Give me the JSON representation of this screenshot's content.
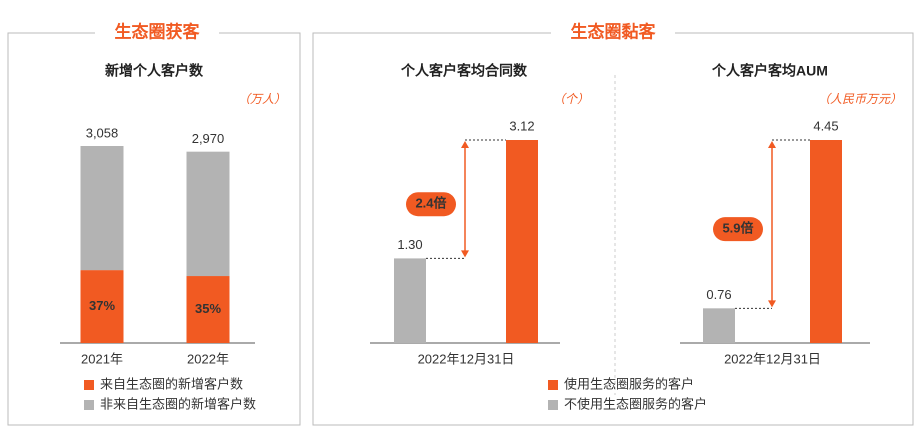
{
  "sections": [
    {
      "title": "生态圈获客"
    },
    {
      "title": "生态圈黏客"
    }
  ],
  "chart_data": [
    {
      "type": "stacked_bar",
      "title": "新增个人客户数",
      "unit": "（万人）",
      "categories": [
        "2021年",
        "2022年"
      ],
      "totals": {
        "values": [
          3058,
          2970
        ],
        "value_labels": [
          "3,058",
          "2,970"
        ]
      },
      "series": [
        {
          "name": "来自生态圈的新增客户数",
          "color": "#f15a22",
          "values": [
            37,
            35
          ],
          "value_labels": [
            "37%",
            "35%"
          ]
        },
        {
          "name": "非来自生态圈的新增客户数",
          "color": "#b3b3b3",
          "values": [
            63,
            65
          ]
        }
      ]
    },
    {
      "type": "bar",
      "title": "个人客户客均合同数",
      "unit": "（个）",
      "categories": [
        "2022年12月31日"
      ],
      "annotation": "2.4倍",
      "series": [
        {
          "name": "使用生态圈服务的客户",
          "color": "#f15a22",
          "values": [
            3.12
          ],
          "value_labels": [
            "3.12"
          ]
        },
        {
          "name": "不使用生态圈服务的客户",
          "color": "#b3b3b3",
          "values": [
            1.3
          ],
          "value_labels": [
            "1.30"
          ]
        }
      ]
    },
    {
      "type": "bar",
      "title": "个人客户客均AUM",
      "unit": "（人民币万元）",
      "categories": [
        "2022年12月31日"
      ],
      "annotation": "5.9倍",
      "series": [
        {
          "color": "#f15a22",
          "values": [
            4.45
          ],
          "value_labels": [
            "4.45"
          ]
        },
        {
          "color": "#b3b3b3",
          "values": [
            0.76
          ],
          "value_labels": [
            "0.76"
          ]
        }
      ]
    }
  ]
}
